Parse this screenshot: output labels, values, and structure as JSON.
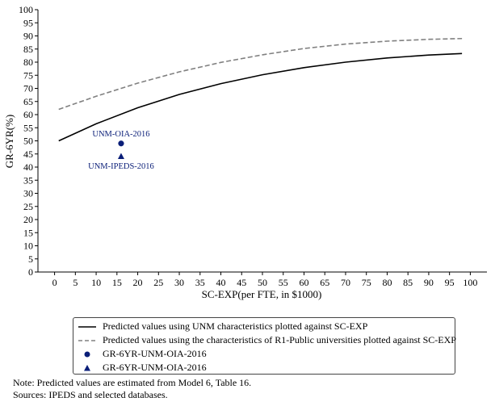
{
  "chart_data": {
    "type": "line",
    "xlabel": "SC-EXP(per FTE, in $1000)",
    "ylabel": "GR-6YR(%)",
    "xlim": [
      -4,
      104
    ],
    "ylim": [
      0,
      100
    ],
    "xticks": [
      0,
      5,
      10,
      15,
      20,
      25,
      30,
      35,
      40,
      45,
      50,
      55,
      60,
      65,
      70,
      75,
      80,
      85,
      90,
      95,
      100
    ],
    "yticks": [
      0,
      5,
      10,
      15,
      20,
      25,
      30,
      35,
      40,
      45,
      50,
      55,
      60,
      65,
      70,
      75,
      80,
      85,
      90,
      95,
      100
    ],
    "grid": false,
    "series": [
      {
        "name": "Predicted values using UNM characteristics plotted against SC-EXP",
        "style": "solid",
        "color": "#000000",
        "x": [
          1,
          10,
          20,
          30,
          40,
          50,
          60,
          70,
          80,
          90,
          98
        ],
        "y": [
          50.0,
          56.5,
          62.6,
          67.7,
          71.8,
          75.2,
          77.9,
          80.0,
          81.6,
          82.7,
          83.3
        ]
      },
      {
        "name": "Predicted values using the characteristics of R1-Public universities plotted against SC-EXP",
        "style": "dashed",
        "color": "#808080",
        "x": [
          1,
          10,
          20,
          30,
          40,
          50,
          60,
          70,
          80,
          90,
          98
        ],
        "y": [
          62.0,
          67.0,
          72.0,
          76.3,
          79.9,
          82.8,
          85.2,
          86.9,
          88.0,
          88.7,
          89.0
        ]
      }
    ],
    "points": [
      {
        "name": "GR-6YR-UNM-OIA-2016",
        "marker": "circle",
        "color": "#0a1e78",
        "x": 16,
        "y": 49,
        "label": "UNM-OIA-2016",
        "label_position": "above"
      },
      {
        "name": "GR-6YR-UNM-OIA-2016",
        "marker": "triangle",
        "color": "#0a1e78",
        "x": 16,
        "y": 44,
        "label": "UNM-IPEDS-2016",
        "label_position": "below"
      }
    ],
    "legend_position": "bottom-center"
  },
  "notes": [
    "Note: Predicted values are estimated from Model 6, Table 16.",
    "Sources: IPEDS and selected databases."
  ]
}
